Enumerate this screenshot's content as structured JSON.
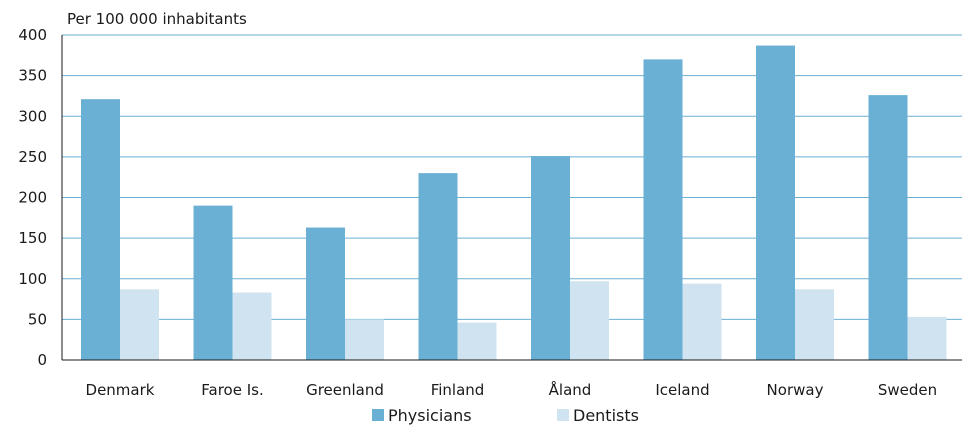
{
  "chart_data": {
    "type": "bar",
    "ylabel": "Per 100 000 inhabitants",
    "categories": [
      "Denmark",
      "Faroe Is.",
      "Greenland",
      "Finland",
      "Åland",
      "Iceland",
      "Norway",
      "Sweden"
    ],
    "series": [
      {
        "name": "Physicians",
        "color": "#6aafd4",
        "values": [
          321,
          190,
          163,
          230,
          251,
          370,
          387,
          326
        ]
      },
      {
        "name": "Dentists",
        "color": "#cfe4f0",
        "values": [
          87,
          83,
          50,
          46,
          97,
          94,
          87,
          53
        ]
      }
    ],
    "ylim": [
      0,
      400
    ],
    "yticks": [
      0,
      50,
      100,
      150,
      200,
      250,
      300,
      350,
      400
    ],
    "grid": true,
    "gridline_color": "#6aafd4",
    "legend_position": "bottom"
  }
}
